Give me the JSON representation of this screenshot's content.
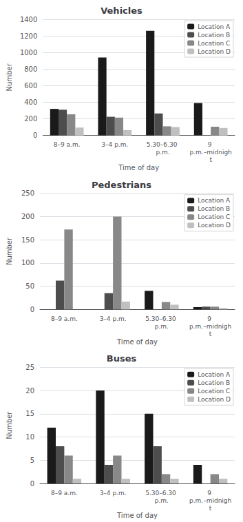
{
  "chart_data": [
    {
      "type": "bar",
      "title": "Vehicles",
      "xlabel": "Time of day",
      "ylabel": "Number",
      "categories": [
        "8–9 a.m.",
        "3–4 p.m.",
        "5.30–6.30 p.m.",
        "9 p.m.–midnight"
      ],
      "series": [
        {
          "name": "Location A",
          "color": "#1a1a1a",
          "values": [
            320,
            940,
            1260,
            390
          ]
        },
        {
          "name": "Location B",
          "color": "#4d4d4d",
          "values": [
            310,
            225,
            265,
            0
          ]
        },
        {
          "name": "Location C",
          "color": "#888888",
          "values": [
            255,
            215,
            110,
            105
          ]
        },
        {
          "name": "Location D",
          "color": "#c0c0c0",
          "values": [
            95,
            65,
            100,
            90
          ]
        }
      ],
      "ylim": [
        0,
        1400
      ],
      "yticks": [
        0,
        200,
        400,
        600,
        800,
        1000,
        1200,
        1400
      ],
      "grid": true,
      "legend": "upper right"
    },
    {
      "type": "bar",
      "title": "Pedestrians",
      "xlabel": "Time of day",
      "ylabel": "Number",
      "categories": [
        "8–9 a.m.",
        "3–4 p.m.",
        "5.30–6.30 p.m.",
        "9 p.m.–midnight"
      ],
      "series": [
        {
          "name": "Location A",
          "color": "#1a1a1a",
          "values": [
            0,
            0,
            40,
            5
          ]
        },
        {
          "name": "Location B",
          "color": "#4d4d4d",
          "values": [
            62,
            35,
            0,
            6
          ]
        },
        {
          "name": "Location C",
          "color": "#888888",
          "values": [
            172,
            200,
            16,
            6
          ]
        },
        {
          "name": "Location D",
          "color": "#c0c0c0",
          "values": [
            0,
            17,
            10,
            3
          ]
        }
      ],
      "ylim": [
        0,
        250
      ],
      "yticks": [
        0,
        50,
        100,
        150,
        200,
        250
      ],
      "grid": true,
      "legend": "upper right"
    },
    {
      "type": "bar",
      "title": "Buses",
      "xlabel": "Time of day",
      "ylabel": "Number",
      "categories": [
        "8–9 a.m.",
        "3–4 p.m.",
        "5.30–6.30 p.m.",
        "9 p.m.–midnight"
      ],
      "series": [
        {
          "name": "Location A",
          "color": "#1a1a1a",
          "values": [
            12,
            20,
            15,
            4
          ]
        },
        {
          "name": "Location B",
          "color": "#4d4d4d",
          "values": [
            8,
            4,
            8,
            0
          ]
        },
        {
          "name": "Location C",
          "color": "#888888",
          "values": [
            6,
            6,
            2,
            2
          ]
        },
        {
          "name": "Location D",
          "color": "#c0c0c0",
          "values": [
            1,
            1,
            1,
            1
          ]
        }
      ],
      "ylim": [
        0,
        25
      ],
      "yticks": [
        0,
        5,
        10,
        15,
        20,
        25
      ],
      "grid": true,
      "legend": "upper right"
    }
  ]
}
